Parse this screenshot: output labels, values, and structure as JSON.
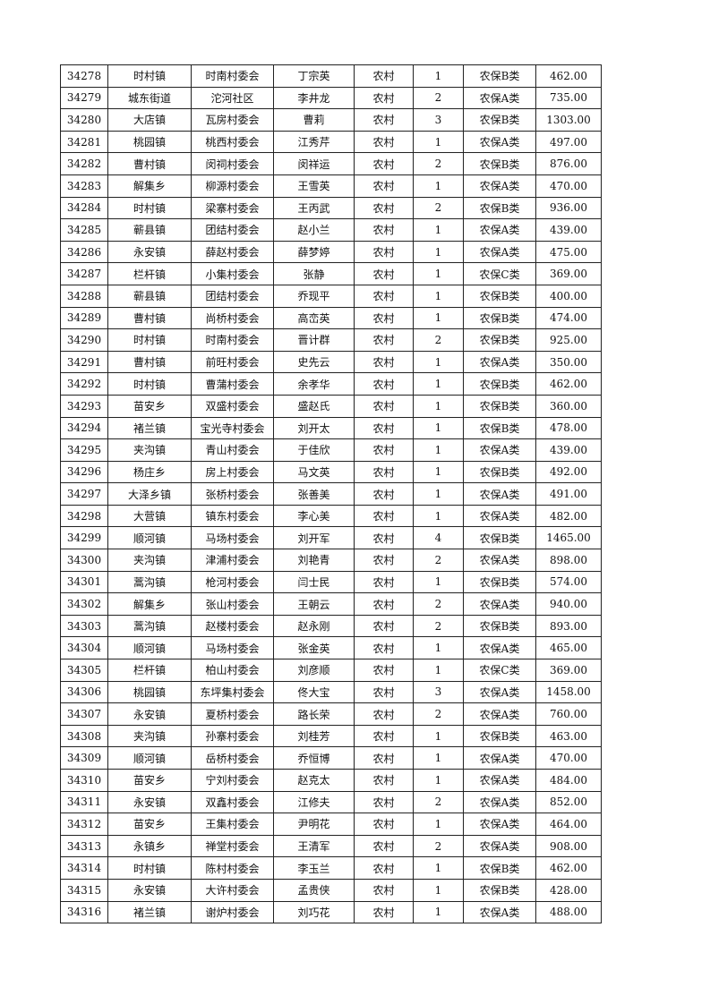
{
  "table": {
    "rows": [
      [
        "34278",
        "时村镇",
        "时南村委会",
        "丁宗英",
        "农村",
        "1",
        "农保B类",
        "462.00"
      ],
      [
        "34279",
        "城东街道",
        "沱河社区",
        "李井龙",
        "农村",
        "2",
        "农保A类",
        "735.00"
      ],
      [
        "34280",
        "大店镇",
        "瓦房村委会",
        "曹莉",
        "农村",
        "3",
        "农保B类",
        "1303.00"
      ],
      [
        "34281",
        "桃园镇",
        "桃西村委会",
        "江秀芹",
        "农村",
        "1",
        "农保A类",
        "497.00"
      ],
      [
        "34282",
        "曹村镇",
        "闵祠村委会",
        "闵祥运",
        "农村",
        "2",
        "农保B类",
        "876.00"
      ],
      [
        "34283",
        "解集乡",
        "柳源村委会",
        "王雪英",
        "农村",
        "1",
        "农保A类",
        "470.00"
      ],
      [
        "34284",
        "时村镇",
        "梁寨村委会",
        "王丙武",
        "农村",
        "2",
        "农保B类",
        "936.00"
      ],
      [
        "34285",
        "蕲县镇",
        "团结村委会",
        "赵小兰",
        "农村",
        "1",
        "农保A类",
        "439.00"
      ],
      [
        "34286",
        "永安镇",
        "薛赵村委会",
        "薛梦婷",
        "农村",
        "1",
        "农保A类",
        "475.00"
      ],
      [
        "34287",
        "栏杆镇",
        "小集村委会",
        "张静",
        "农村",
        "1",
        "农保C类",
        "369.00"
      ],
      [
        "34288",
        "蕲县镇",
        "团结村委会",
        "乔现平",
        "农村",
        "1",
        "农保B类",
        "400.00"
      ],
      [
        "34289",
        "曹村镇",
        "尚桥村委会",
        "高峦英",
        "农村",
        "1",
        "农保B类",
        "474.00"
      ],
      [
        "34290",
        "时村镇",
        "时南村委会",
        "晋计群",
        "农村",
        "2",
        "农保B类",
        "925.00"
      ],
      [
        "34291",
        "曹村镇",
        "前旺村委会",
        "史先云",
        "农村",
        "1",
        "农保A类",
        "350.00"
      ],
      [
        "34292",
        "时村镇",
        "曹蒲村委会",
        "余孝华",
        "农村",
        "1",
        "农保B类",
        "462.00"
      ],
      [
        "34293",
        "苗安乡",
        "双盛村委会",
        "盛赵氏",
        "农村",
        "1",
        "农保B类",
        "360.00"
      ],
      [
        "34294",
        "褚兰镇",
        "宝光寺村委会",
        "刘开太",
        "农村",
        "1",
        "农保B类",
        "478.00"
      ],
      [
        "34295",
        "夹沟镇",
        "青山村委会",
        "于佳欣",
        "农村",
        "1",
        "农保A类",
        "439.00"
      ],
      [
        "34296",
        "杨庄乡",
        "房上村委会",
        "马文英",
        "农村",
        "1",
        "农保B类",
        "492.00"
      ],
      [
        "34297",
        "大泽乡镇",
        "张桥村委会",
        "张善美",
        "农村",
        "1",
        "农保A类",
        "491.00"
      ],
      [
        "34298",
        "大营镇",
        "镇东村委会",
        "李心美",
        "农村",
        "1",
        "农保A类",
        "482.00"
      ],
      [
        "34299",
        "顺河镇",
        "马场村委会",
        "刘开军",
        "农村",
        "4",
        "农保B类",
        "1465.00"
      ],
      [
        "34300",
        "夹沟镇",
        "津浦村委会",
        "刘艳青",
        "农村",
        "2",
        "农保A类",
        "898.00"
      ],
      [
        "34301",
        "蒿沟镇",
        "枪河村委会",
        "闫士民",
        "农村",
        "1",
        "农保B类",
        "574.00"
      ],
      [
        "34302",
        "解集乡",
        "张山村委会",
        "王朝云",
        "农村",
        "2",
        "农保A类",
        "940.00"
      ],
      [
        "34303",
        "蒿沟镇",
        "赵楼村委会",
        "赵永刚",
        "农村",
        "2",
        "农保B类",
        "893.00"
      ],
      [
        "34304",
        "顺河镇",
        "马场村委会",
        "张金英",
        "农村",
        "1",
        "农保A类",
        "465.00"
      ],
      [
        "34305",
        "栏杆镇",
        "柏山村委会",
        "刘彦顺",
        "农村",
        "1",
        "农保C类",
        "369.00"
      ],
      [
        "34306",
        "桃园镇",
        "东坪集村委会",
        "佟大宝",
        "农村",
        "3",
        "农保A类",
        "1458.00"
      ],
      [
        "34307",
        "永安镇",
        "夏桥村委会",
        "路长荣",
        "农村",
        "2",
        "农保A类",
        "760.00"
      ],
      [
        "34308",
        "夹沟镇",
        "孙寨村委会",
        "刘桂芳",
        "农村",
        "1",
        "农保B类",
        "463.00"
      ],
      [
        "34309",
        "顺河镇",
        "岳桥村委会",
        "乔恒博",
        "农村",
        "1",
        "农保A类",
        "470.00"
      ],
      [
        "34310",
        "苗安乡",
        "宁刘村委会",
        "赵克太",
        "农村",
        "1",
        "农保A类",
        "484.00"
      ],
      [
        "34311",
        "永安镇",
        "双鑫村委会",
        "江修夫",
        "农村",
        "2",
        "农保A类",
        "852.00"
      ],
      [
        "34312",
        "苗安乡",
        "王集村委会",
        "尹明花",
        "农村",
        "1",
        "农保A类",
        "464.00"
      ],
      [
        "34313",
        "永镇乡",
        "禅堂村委会",
        "王清军",
        "农村",
        "2",
        "农保A类",
        "908.00"
      ],
      [
        "34314",
        "时村镇",
        "陈村村委会",
        "李玉兰",
        "农村",
        "1",
        "农保B类",
        "462.00"
      ],
      [
        "34315",
        "永安镇",
        "大许村委会",
        "孟贵侠",
        "农村",
        "1",
        "农保B类",
        "428.00"
      ],
      [
        "34316",
        "褚兰镇",
        "谢炉村委会",
        "刘巧花",
        "农村",
        "1",
        "农保A类",
        "488.00"
      ]
    ]
  }
}
